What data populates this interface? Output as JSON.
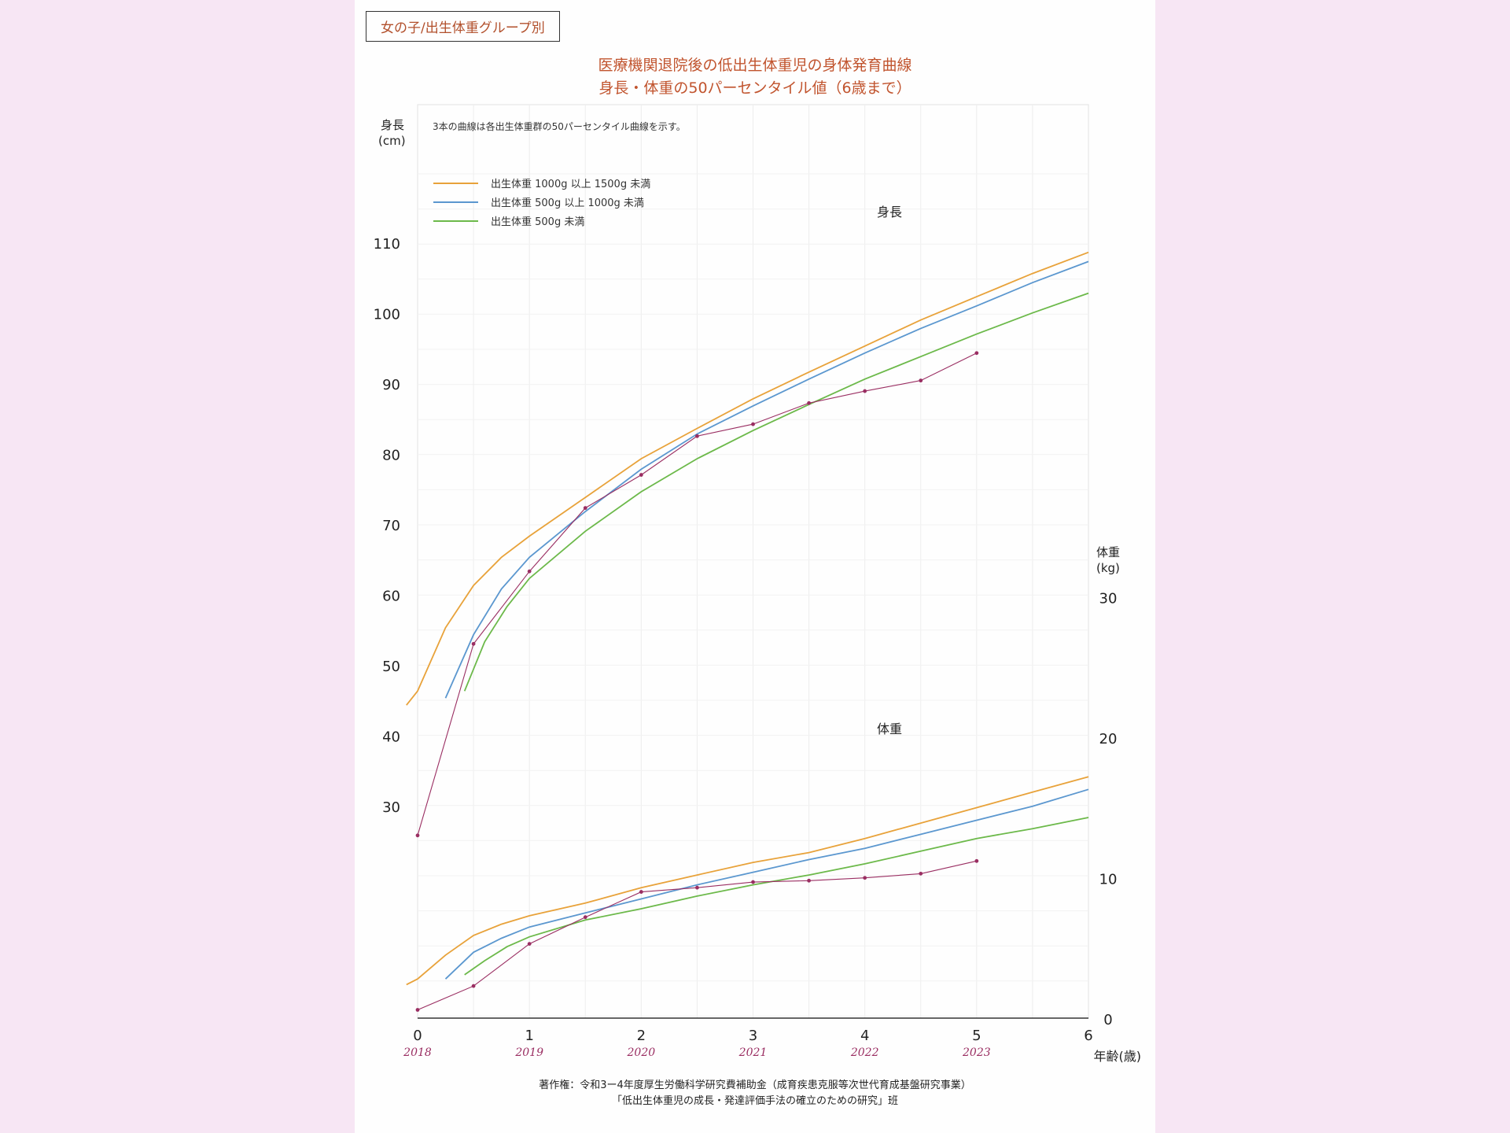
{
  "header": {
    "tag": "女の子/出生体重グループ別",
    "title_line1": "医療機関退院後の低出生体重児の身体発育曲線",
    "title_line2": "身長・体重の50パーセンタイル値（6歳まで）"
  },
  "footer": {
    "line1": "著作権：令和3ー4年度厚生労働科学研究費補助金（成育疾患克服等次世代育成基盤研究事業）",
    "line2": "「低出生体重児の成長・発達評価手法の確立のための研究」班"
  },
  "colors": {
    "orange": "#e8a23a",
    "blue": "#5b97cf",
    "green": "#6cb94a",
    "plotted": "#9a2e62"
  },
  "chart_data": {
    "type": "line",
    "note": "3本の曲線は各出生体重群の50パーセンタイル曲線を示す。",
    "xlabel": "年齢(歳)",
    "xlim": [
      0,
      6
    ],
    "x_ticks": [
      "0",
      "1",
      "2",
      "3",
      "4",
      "5",
      "6"
    ],
    "year_annotations": [
      {
        "x": 0,
        "label": "2018"
      },
      {
        "x": 1,
        "label": "2019"
      },
      {
        "x": 2,
        "label": "2020"
      },
      {
        "x": 3,
        "label": "2021"
      },
      {
        "x": 4,
        "label": "2022"
      },
      {
        "x": 5,
        "label": "2023"
      }
    ],
    "left_axis": {
      "label_line1": "身長",
      "label_line2": "(cm)",
      "ticks": [
        30,
        40,
        50,
        60,
        70,
        80,
        90,
        100,
        110
      ]
    },
    "right_axis": {
      "label_line1": "体重",
      "label_line2": "(kg)",
      "ticks": [
        0,
        10,
        20,
        30
      ]
    },
    "section_labels": {
      "height": "身長",
      "weight": "体重"
    },
    "legend": [
      "出生体重 1000g 以上 1500g 未満",
      "出生体重 500g 以上 1000g 未満",
      "出生体重 500g 未満"
    ],
    "height_series": [
      {
        "color_key": "orange",
        "points": [
          [
            -0.1,
            44.5
          ],
          [
            0,
            46.5
          ],
          [
            0.25,
            55.5
          ],
          [
            0.5,
            61.5
          ],
          [
            0.75,
            65.5
          ],
          [
            1,
            68.5
          ],
          [
            1.5,
            74
          ],
          [
            2,
            79.5
          ],
          [
            2.5,
            83.8
          ],
          [
            3,
            88
          ],
          [
            3.5,
            91.8
          ],
          [
            4,
            95.5
          ],
          [
            4.5,
            99.2
          ],
          [
            5,
            102.5
          ],
          [
            5.5,
            105.8
          ],
          [
            6,
            108.8
          ]
        ]
      },
      {
        "color_key": "blue",
        "points": [
          [
            0.25,
            45.5
          ],
          [
            0.5,
            54.5
          ],
          [
            0.75,
            61
          ],
          [
            1,
            65.5
          ],
          [
            1.5,
            72
          ],
          [
            2,
            78
          ],
          [
            2.5,
            83
          ],
          [
            3,
            87
          ],
          [
            3.5,
            90.8
          ],
          [
            4,
            94.5
          ],
          [
            4.5,
            98
          ],
          [
            5,
            101.2
          ],
          [
            5.5,
            104.5
          ],
          [
            6,
            107.5
          ]
        ]
      },
      {
        "color_key": "green",
        "points": [
          [
            0.42,
            46.5
          ],
          [
            0.6,
            53.5
          ],
          [
            0.8,
            58.5
          ],
          [
            1,
            62.5
          ],
          [
            1.5,
            69.2
          ],
          [
            2,
            74.8
          ],
          [
            2.5,
            79.5
          ],
          [
            3,
            83.5
          ],
          [
            3.5,
            87.2
          ],
          [
            4,
            90.8
          ],
          [
            4.5,
            94
          ],
          [
            5,
            97.2
          ],
          [
            5.5,
            100.2
          ],
          [
            6,
            103
          ]
        ]
      }
    ],
    "weight_series": [
      {
        "color_key": "orange",
        "points": [
          [
            -0.1,
            2.5
          ],
          [
            0,
            2.9
          ],
          [
            0.25,
            4.6
          ],
          [
            0.5,
            6
          ],
          [
            0.75,
            6.8
          ],
          [
            1,
            7.4
          ],
          [
            1.5,
            8.3
          ],
          [
            2,
            9.4
          ],
          [
            2.5,
            10.3
          ],
          [
            3,
            11.2
          ],
          [
            3.5,
            11.9
          ],
          [
            4,
            12.9
          ],
          [
            4.5,
            14
          ],
          [
            5,
            15.1
          ],
          [
            5.5,
            16.2
          ],
          [
            6,
            17.3
          ]
        ]
      },
      {
        "color_key": "blue",
        "points": [
          [
            0.25,
            2.9
          ],
          [
            0.5,
            4.8
          ],
          [
            0.75,
            5.8
          ],
          [
            1,
            6.6
          ],
          [
            1.5,
            7.6
          ],
          [
            2,
            8.6
          ],
          [
            2.5,
            9.6
          ],
          [
            3,
            10.5
          ],
          [
            3.5,
            11.4
          ],
          [
            4,
            12.2
          ],
          [
            4.5,
            13.2
          ],
          [
            5,
            14.2
          ],
          [
            5.5,
            15.2
          ],
          [
            6,
            16.4
          ]
        ]
      },
      {
        "color_key": "green",
        "points": [
          [
            0.42,
            3.2
          ],
          [
            0.6,
            4.2
          ],
          [
            0.8,
            5.2
          ],
          [
            1,
            5.9
          ],
          [
            1.5,
            7.1
          ],
          [
            2,
            7.9
          ],
          [
            2.5,
            8.8
          ],
          [
            3,
            9.6
          ],
          [
            3.5,
            10.3
          ],
          [
            4,
            11.1
          ],
          [
            4.5,
            12
          ],
          [
            5,
            12.9
          ],
          [
            5.5,
            13.6
          ],
          [
            6,
            14.4
          ]
        ]
      }
    ],
    "plotted_height": [
      [
        0,
        26
      ],
      [
        0.5,
        53.2
      ],
      [
        1,
        63.5
      ],
      [
        1.5,
        72.5
      ],
      [
        2,
        77.2
      ],
      [
        2.5,
        82.7
      ],
      [
        3,
        84.4
      ],
      [
        3.5,
        87.4
      ],
      [
        4,
        89.1
      ],
      [
        4.5,
        90.6
      ],
      [
        5,
        94.5
      ]
    ],
    "plotted_weight": [
      [
        0,
        0.7
      ],
      [
        0.5,
        2.4
      ],
      [
        1,
        5.4
      ],
      [
        1.5,
        7.3
      ],
      [
        2,
        9.1
      ],
      [
        2.5,
        9.4
      ],
      [
        3,
        9.8
      ],
      [
        3.5,
        9.9
      ],
      [
        4,
        10.1
      ],
      [
        4.5,
        10.4
      ],
      [
        5,
        11.3
      ]
    ]
  }
}
